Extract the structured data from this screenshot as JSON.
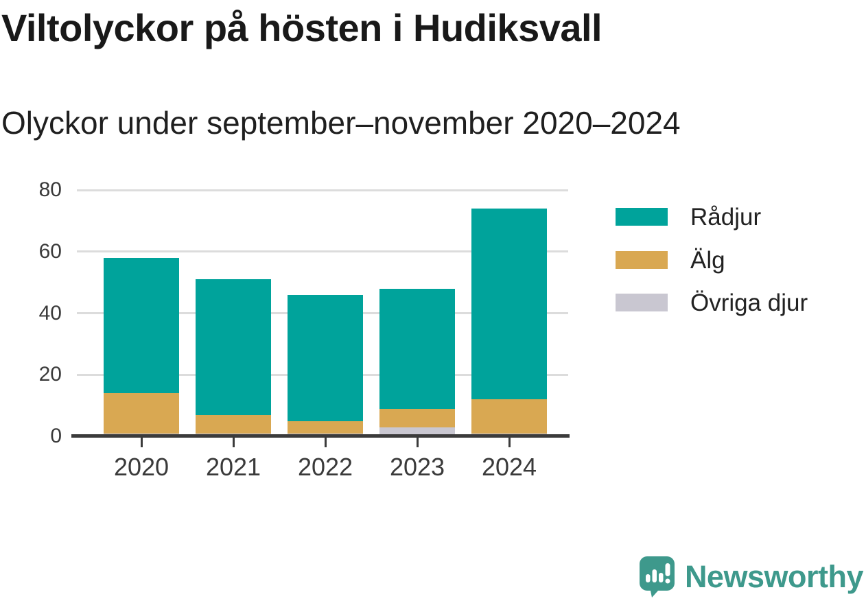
{
  "header": {
    "title": "Viltolyckor på hösten i Hudiksvall",
    "subtitle": "Olyckor under september–november 2020–2024"
  },
  "chart_data": {
    "type": "bar",
    "stacked": true,
    "title": "Viltolyckor på hösten i Hudiksvall",
    "subtitle": "Olyckor under september–november 2020–2024",
    "categories": [
      "2020",
      "2021",
      "2022",
      "2023",
      "2024"
    ],
    "series": [
      {
        "name": "Rådjur",
        "color": "#00A39B",
        "values": [
          44,
          44,
          41,
          39,
          62
        ]
      },
      {
        "name": "Älg",
        "color": "#D9A852",
        "values": [
          13,
          6,
          4,
          6,
          11
        ]
      },
      {
        "name": "Övriga djur",
        "color": "#C9C7D1",
        "values": [
          1,
          1,
          1,
          3,
          1
        ]
      }
    ],
    "totals": [
      58,
      51,
      46,
      48,
      74
    ],
    "xlabel": "",
    "ylabel": "",
    "ylim": [
      0,
      80
    ],
    "yticks": [
      0,
      20,
      40,
      60,
      80
    ],
    "grid": "horizontal",
    "legend_position": "right",
    "axis_color": "#3b3b3b",
    "grid_color": "#dcdcdc",
    "tick_text_color": "#3a3a3a"
  },
  "footer": {
    "brand": "Newsworthy",
    "brand_color": "#3E998C",
    "logo_icon": "bar-chart-speech-bubble"
  }
}
